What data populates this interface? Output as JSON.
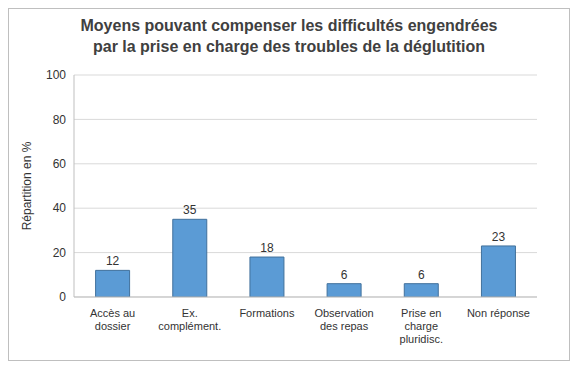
{
  "chart_data": {
    "type": "bar",
    "title": "Moyens pouvant compenser les difficultés engendrées par la prise en charge des troubles de la déglutition",
    "y_label": "Répartition en %",
    "categories": [
      "Accès au dossier",
      "Ex. complément.",
      "Formations",
      "Observation des repas",
      "Prise en charge pluridisc.",
      "Non réponse"
    ],
    "values": [
      12,
      35,
      18,
      6,
      6,
      23
    ],
    "color": "#5b9bd5",
    "ylim": [
      0,
      100
    ],
    "yticks": [
      0,
      20,
      40,
      60,
      80,
      100
    ],
    "grid": true,
    "data_labels": true
  }
}
